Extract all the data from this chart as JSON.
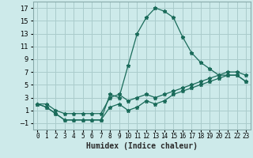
{
  "title": "",
  "xlabel": "Humidex (Indice chaleur)",
  "xlim": [
    -0.5,
    23.5
  ],
  "ylim": [
    -2,
    18
  ],
  "yticks": [
    -1,
    1,
    3,
    5,
    7,
    9,
    11,
    13,
    15,
    17
  ],
  "xticks": [
    0,
    1,
    2,
    3,
    4,
    5,
    6,
    7,
    8,
    9,
    10,
    11,
    12,
    13,
    14,
    15,
    16,
    17,
    18,
    19,
    20,
    21,
    22,
    23
  ],
  "bg_color": "#cdeaea",
  "grid_color": "#aacccc",
  "line_color": "#1a6b5a",
  "series": [
    [
      2.0,
      2.0,
      1.0,
      0.5,
      0.5,
      0.5,
      0.5,
      0.5,
      3.0,
      3.5,
      2.5,
      3.0,
      3.5,
      3.0,
      3.5,
      4.0,
      4.5,
      5.0,
      5.5,
      6.0,
      6.5,
      7.0,
      7.0,
      6.5
    ],
    [
      2.0,
      1.5,
      0.5,
      -0.5,
      -0.5,
      -0.5,
      -0.5,
      -0.5,
      1.5,
      2.0,
      1.0,
      1.5,
      2.5,
      2.0,
      2.5,
      3.5,
      4.0,
      4.5,
      5.0,
      5.5,
      6.0,
      6.5,
      6.5,
      5.5
    ],
    [
      2.0,
      1.5,
      0.5,
      -0.5,
      -0.5,
      -0.5,
      -0.5,
      -0.5,
      3.5,
      3.0,
      8.0,
      13.0,
      15.5,
      17.0,
      16.5,
      15.5,
      12.5,
      10.0,
      8.5,
      7.5,
      6.5,
      6.5,
      6.5,
      5.5
    ]
  ],
  "marker": "*",
  "markersize": 3.5,
  "linewidth": 0.9
}
